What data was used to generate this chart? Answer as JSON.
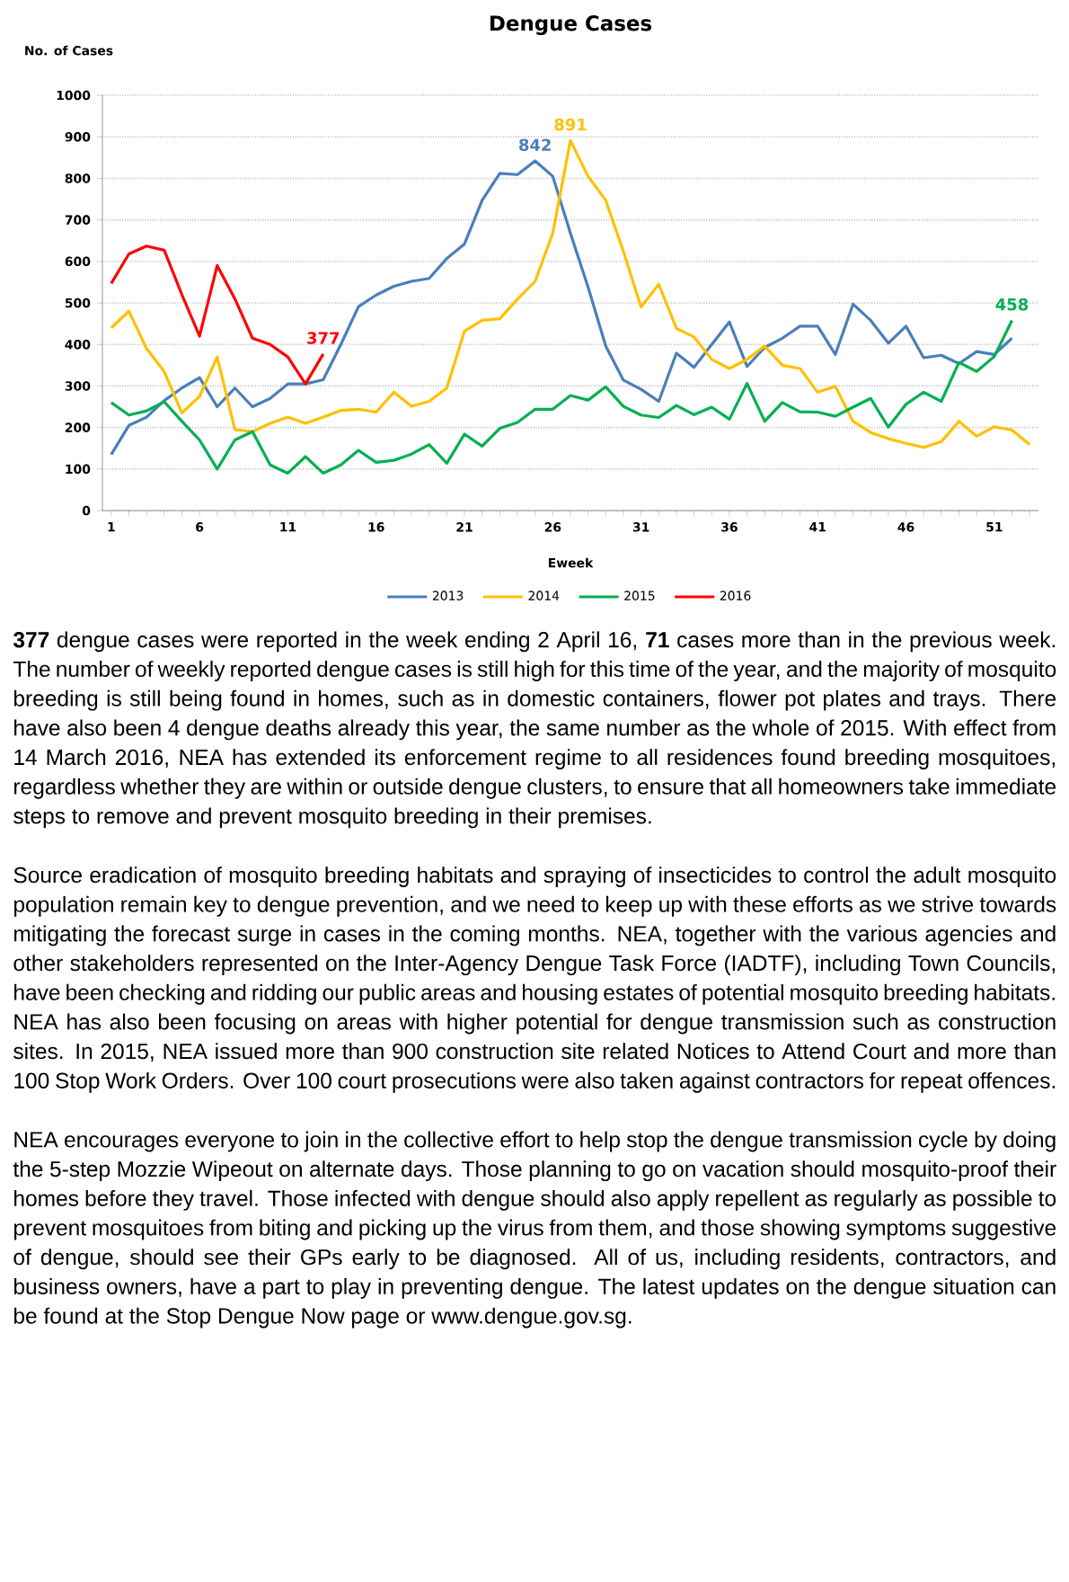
{
  "chart_data": {
    "type": "line",
    "title": "Dengue Cases",
    "xlabel": "Eweek",
    "ylabel": "No. of Cases",
    "x": [
      1,
      2,
      3,
      4,
      5,
      6,
      7,
      8,
      9,
      10,
      11,
      12,
      13,
      14,
      15,
      16,
      17,
      18,
      19,
      20,
      21,
      22,
      23,
      24,
      25,
      26,
      27,
      28,
      29,
      30,
      31,
      32,
      33,
      34,
      35,
      36,
      37,
      38,
      39,
      40,
      41,
      42,
      43,
      44,
      45,
      46,
      47,
      48,
      49,
      50,
      51,
      52,
      53
    ],
    "xlim": [
      0.5,
      53.5
    ],
    "xticks": [
      1,
      {
        "value": 2,
        "label": null
      },
      {
        "value": 3,
        "label": null
      },
      {
        "value": 4,
        "label": null
      },
      {
        "value": 5,
        "label": null
      },
      6,
      {
        "value": 7,
        "label": null
      },
      {
        "value": 8,
        "label": null
      },
      {
        "value": 9,
        "label": null
      },
      {
        "value": 10,
        "label": null
      },
      11,
      {
        "value": 12,
        "label": null
      },
      {
        "value": 13,
        "label": null
      },
      {
        "value": 14,
        "label": null
      },
      {
        "value": 15,
        "label": null
      },
      16,
      {
        "value": 17,
        "label": null
      },
      {
        "value": 18,
        "label": null
      },
      {
        "value": 19,
        "label": null
      },
      {
        "value": 20,
        "label": null
      },
      21,
      {
        "value": 22,
        "label": null
      },
      {
        "value": 23,
        "label": null
      },
      {
        "value": 24,
        "label": null
      },
      {
        "value": 25,
        "label": null
      },
      26,
      {
        "value": 27,
        "label": null
      },
      {
        "value": 28,
        "label": null
      },
      {
        "value": 29,
        "label": null
      },
      {
        "value": 30,
        "label": null
      },
      31,
      {
        "value": 32,
        "label": null
      },
      {
        "value": 33,
        "label": null
      },
      {
        "value": 34,
        "label": null
      },
      {
        "value": 35,
        "label": null
      },
      36,
      {
        "value": 37,
        "label": null
      },
      {
        "value": 38,
        "label": null
      },
      {
        "value": 39,
        "label": null
      },
      {
        "value": 40,
        "label": null
      },
      41,
      {
        "value": 42,
        "label": null
      },
      {
        "value": 43,
        "label": null
      },
      {
        "value": 44,
        "label": null
      },
      {
        "value": 45,
        "label": null
      },
      46,
      {
        "value": 47,
        "label": null
      },
      {
        "value": 48,
        "label": null
      },
      {
        "value": 49,
        "label": null
      },
      {
        "value": 50,
        "label": null
      },
      51,
      {
        "value": 52,
        "label": null
      },
      {
        "value": 53,
        "label": null
      }
    ],
    "ylim": [
      0,
      1000
    ],
    "yticks": [
      0,
      100,
      200,
      300,
      400,
      500,
      600,
      700,
      800,
      900,
      1000
    ],
    "grid": "y",
    "legend": "bottom",
    "marker": "none",
    "line_style": "solid",
    "series": [
      {
        "name": "2013",
        "color": "#4a7ebb",
        "x": [
          1,
          2,
          3,
          4,
          5,
          6,
          7,
          8,
          9,
          10,
          11,
          12,
          13,
          14,
          15,
          16,
          17,
          18,
          19,
          20,
          21,
          22,
          23,
          24,
          25,
          26,
          27,
          28,
          29,
          30,
          31,
          32,
          33,
          34,
          35,
          36,
          37,
          38,
          39,
          40,
          41,
          42,
          43,
          44,
          45,
          46,
          47,
          48,
          49,
          50,
          51,
          52
        ],
        "values": [
          135,
          205,
          225,
          265,
          295,
          320,
          250,
          295,
          250,
          270,
          305,
          305,
          315,
          400,
          491,
          519,
          540,
          552,
          559,
          607,
          642,
          747,
          812,
          809,
          842,
          805,
          668,
          538,
          396,
          314,
          292,
          263,
          379,
          345,
          400,
          454,
          347,
          393,
          415,
          444,
          444,
          376,
          497,
          458,
          403,
          444,
          368,
          374,
          354,
          383,
          376,
          415
        ],
        "value_labels": [
          null,
          null,
          null,
          null,
          null,
          null,
          null,
          null,
          null,
          null,
          null,
          null,
          null,
          null,
          null,
          null,
          null,
          null,
          null,
          null,
          null,
          null,
          null,
          null,
          "842",
          null,
          null,
          null,
          null,
          null,
          null,
          null,
          null,
          null,
          null,
          null,
          null,
          null,
          null,
          null,
          null,
          null,
          null,
          null,
          null,
          null,
          null,
          null,
          null,
          null,
          null,
          null
        ]
      },
      {
        "name": "2014",
        "color": "#ffc000",
        "values": [
          440,
          480,
          390,
          335,
          235,
          275,
          370,
          195,
          190,
          210,
          225,
          210,
          225,
          241,
          244,
          237,
          285,
          251,
          263,
          295,
          432,
          458,
          462,
          509,
          552,
          668,
          891,
          805,
          747,
          624,
          490,
          545,
          439,
          418,
          364,
          342,
          364,
          396,
          350,
          342,
          285,
          299,
          215,
          188,
          173,
          162,
          152,
          166,
          215,
          179,
          202,
          194,
          159
        ],
        "value_labels": [
          null,
          null,
          null,
          null,
          null,
          null,
          null,
          null,
          null,
          null,
          null,
          null,
          null,
          null,
          null,
          null,
          null,
          null,
          null,
          null,
          null,
          null,
          null,
          null,
          null,
          null,
          "891",
          null,
          null,
          null,
          null,
          null,
          null,
          null,
          null,
          null,
          null,
          null,
          null,
          null,
          null,
          null,
          null,
          null,
          null,
          null,
          null,
          null,
          null,
          null,
          null,
          null,
          null
        ]
      },
      {
        "name": "2015",
        "color": "#00b050",
        "x": [
          1,
          2,
          3,
          4,
          5,
          6,
          7,
          8,
          9,
          10,
          11,
          12,
          13,
          14,
          15,
          16,
          17,
          18,
          19,
          20,
          21,
          22,
          23,
          24,
          25,
          26,
          27,
          28,
          29,
          30,
          31,
          32,
          33,
          34,
          35,
          36,
          37,
          38,
          39,
          40,
          41,
          42,
          43,
          44,
          45,
          46,
          47,
          48,
          49,
          50,
          51,
          52
        ],
        "values": [
          260,
          230,
          240,
          262,
          215,
          170,
          100,
          170,
          190,
          110,
          90,
          130,
          90,
          110,
          145,
          116,
          121,
          136,
          159,
          114,
          184,
          155,
          198,
          212,
          244,
          244,
          277,
          266,
          298,
          251,
          230,
          224,
          253,
          231,
          249,
          220,
          306,
          215,
          260,
          238,
          237,
          227,
          249,
          270,
          201,
          256,
          285,
          263,
          357,
          335,
          371,
          458
        ],
        "value_labels": [
          null,
          null,
          null,
          null,
          null,
          null,
          null,
          null,
          null,
          null,
          null,
          null,
          null,
          null,
          null,
          null,
          null,
          null,
          null,
          null,
          null,
          null,
          null,
          null,
          null,
          null,
          null,
          null,
          null,
          null,
          null,
          null,
          null,
          null,
          null,
          null,
          null,
          null,
          null,
          null,
          null,
          null,
          null,
          null,
          null,
          null,
          null,
          null,
          null,
          null,
          null,
          "458"
        ]
      },
      {
        "name": "2016",
        "color": "#ff0000",
        "x": [
          1,
          2,
          3,
          4,
          5,
          6,
          7,
          8,
          9,
          10,
          11,
          12,
          13
        ],
        "values": [
          547,
          618,
          637,
          627,
          520,
          420,
          590,
          510,
          415,
          400,
          370,
          305,
          377
        ],
        "value_labels": [
          null,
          null,
          null,
          null,
          null,
          null,
          null,
          null,
          null,
          null,
          null,
          null,
          "377"
        ]
      }
    ],
    "annotations": [
      "**377** dengue cases were reported in the week ending 2 April 16, **71** cases more than in the previous week. The number of weekly reported dengue cases is still high for this time of the year, and the majority of mosquito breeding is still being found in homes, such as in domestic containers, flower pot plates and trays. There have also been 4 dengue deaths already this year, the same number as the whole of 2015. With effect from 14 March 2016, NEA has extended its enforcement regime to all residences found breeding mosquitoes, regardless whether they are within or outside dengue clusters, to ensure that all homeowners take immediate steps to remove and prevent mosquito breeding in their premises.",
      "Source eradication of mosquito breeding habitats and spraying of insecticides to control the adult mosquito population remain key to dengue prevention, and we need to keep up with these efforts as we strive towards mitigating the forecast surge in cases in the coming months. NEA, together with the various agencies and other stakeholders represented on the Inter-Agency Dengue Task Force (IADTF), including Town Councils, have been checking and ridding our public areas and housing estates of potential mosquito breeding habitats. NEA has also been focusing on areas with higher potential for dengue transmission such as construction sites. In 2015, NEA issued more than 900 construction site related Notices to Attend Court and more than 100 Stop Work Orders. Over 100 court prosecutions were also taken against contractors for repeat offences.",
      "NEA encourages everyone to join in the collective effort to help stop the dengue transmission cycle by doing the 5-step Mozzie Wipeout on alternate days. Those planning to go on vacation should mosquito-proof their homes before they travel. Those infected with dengue should also apply repellent as regularly as possible to prevent mosquitoes from biting and picking up the virus from them, and those showing symptoms suggestive of dengue, should see their GPs early to be diagnosed. All of us, including residents, contractors, and business owners, have a part to play in preventing dengue. The latest updates on the dengue situation can be found at the Stop Dengue Now page or www.dengue.gov.sg."
    ]
  }
}
